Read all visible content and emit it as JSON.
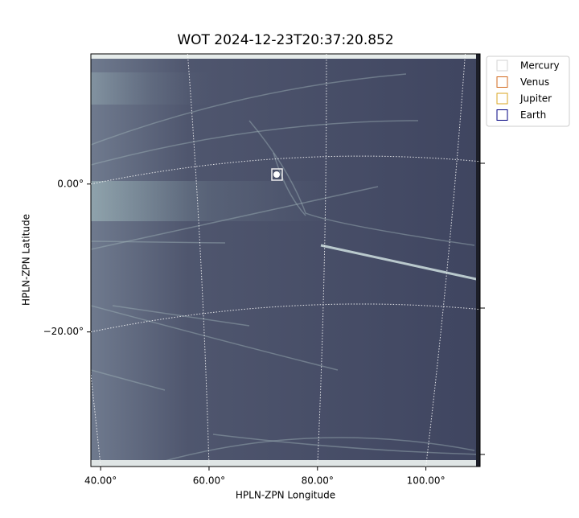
{
  "chart_data": {
    "type": "image",
    "title": "WOT 2024-12-23T20:37:20.852",
    "x_label": "HPLN-ZPN Longitude",
    "y_label": "HPLN-ZPN Latitude",
    "xlim": [
      38.2,
      110
    ],
    "ylim": [
      -38.2,
      17.6
    ],
    "xticks": [
      {
        "value": 40,
        "label": "40.00°"
      },
      {
        "value": 60,
        "label": "60.00°"
      },
      {
        "value": 80,
        "label": "80.00°"
      },
      {
        "value": 100,
        "label": "100.00°"
      }
    ],
    "yticks": [
      {
        "value": 0,
        "label": "0.00°"
      },
      {
        "value": -20,
        "label": "−20.00°"
      }
    ],
    "grid": true,
    "legend": "upper right outside",
    "series": [
      {
        "name": "Mercury",
        "color": "#d3d3d3"
      },
      {
        "name": "Venus",
        "color": "#d2691e"
      },
      {
        "name": "Jupiter",
        "color": "#daa520"
      },
      {
        "name": "Earth",
        "color": "#000080"
      }
    ]
  }
}
